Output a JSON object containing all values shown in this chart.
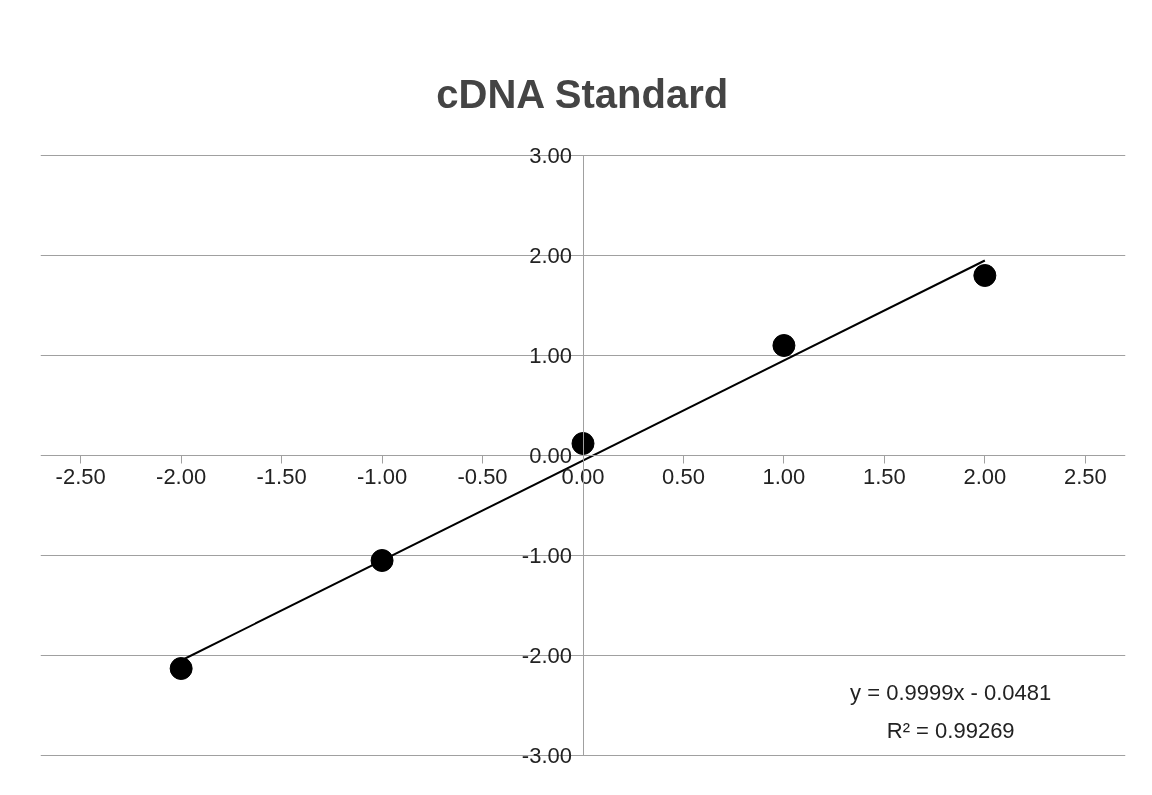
{
  "chart_data": {
    "type": "scatter",
    "title": "cDNA Standard",
    "x": [
      -2,
      -1,
      0,
      1,
      2
    ],
    "series": [
      {
        "color": "#000000",
        "values": [
          -2.13,
          -1.05,
          0.12,
          1.1,
          1.8
        ],
        "marker": "circle"
      },
      {
        "type": "line",
        "color": "#000000",
        "x": [
          -2,
          2
        ],
        "values": [
          -2.05,
          1.95
        ],
        "marker": "none",
        "line_style": "solid"
      }
    ],
    "xlim": [
      -2.5,
      2.5
    ],
    "xticks": [
      {
        "value": -2.5,
        "label": "-2.50"
      },
      {
        "value": -2,
        "label": "-2.00"
      },
      {
        "value": -1.5,
        "label": "-1.50"
      },
      {
        "value": -1,
        "label": "-1.00"
      },
      {
        "value": -0.5,
        "label": "-0.50"
      },
      {
        "value": 0,
        "label": "0.00"
      },
      {
        "value": 0.5,
        "label": "0.50"
      },
      {
        "value": 1,
        "label": "1.00"
      },
      {
        "value": 1.5,
        "label": "1.50"
      },
      {
        "value": 2,
        "label": "2.00"
      },
      {
        "value": 2.5,
        "label": "2.50"
      }
    ],
    "ylim": [
      -3,
      3
    ],
    "yticks": [
      {
        "value": -3,
        "label": "-3.00"
      },
      {
        "value": -2,
        "label": "-2.00"
      },
      {
        "value": -1,
        "label": "-1.00"
      },
      {
        "value": 0,
        "label": "0.00"
      },
      {
        "value": 1,
        "label": "1.00"
      },
      {
        "value": 2,
        "label": "2.00"
      },
      {
        "value": 3,
        "label": "3.00"
      }
    ],
    "grid": "y",
    "annotations": [
      "y = 0.9999x - 0.0481",
      "R² = 0.99269"
    ]
  }
}
